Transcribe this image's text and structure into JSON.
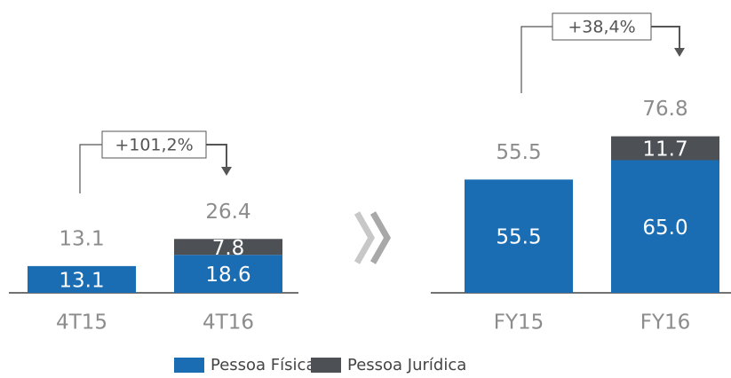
{
  "chart_data": {
    "type": "bar",
    "stacked": true,
    "categories": [
      "4T15",
      "4T16",
      "FY15",
      "FY16"
    ],
    "series": [
      {
        "name": "Pessoa Física",
        "color": "#1b6db3",
        "values": [
          13.1,
          18.6,
          55.5,
          65.0
        ],
        "value_labels": [
          "13.1",
          "18.6",
          "55.5",
          "65.0"
        ]
      },
      {
        "name": "Pessoa Jurídica",
        "color": "#4d5156",
        "values": [
          null,
          7.8,
          null,
          11.7
        ],
        "value_labels": [
          null,
          "7.8",
          null,
          "11.7"
        ]
      }
    ],
    "totals": [
      13.1,
      26.4,
      55.5,
      76.8
    ],
    "annotations": [
      "+101,2%",
      "+38,4%"
    ]
  }
}
